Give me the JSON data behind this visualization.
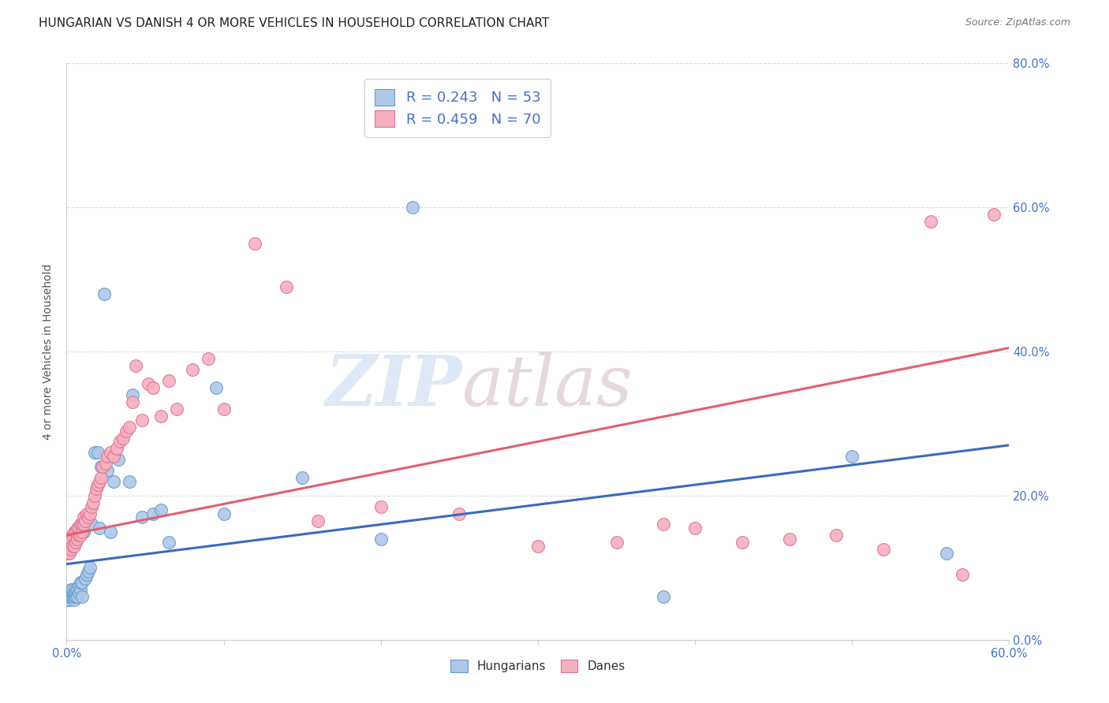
{
  "title": "HUNGARIAN VS DANISH 4 OR MORE VEHICLES IN HOUSEHOLD CORRELATION CHART",
  "source": "Source: ZipAtlas.com",
  "xlim": [
    0.0,
    0.6
  ],
  "ylim": [
    0.0,
    0.8
  ],
  "ylabel": "4 or more Vehicles in Household",
  "legend_r_entries": [
    {
      "label": "R = 0.243   N = 53",
      "color": "#adc8e8",
      "edge_color": "#6699cc"
    },
    {
      "label": "R = 0.459   N = 70",
      "color": "#f5b0c0",
      "edge_color": "#e07090"
    }
  ],
  "hungarian_scatter": {
    "color": "#adc8e8",
    "edge_color": "#6699cc",
    "x": [
      0.001,
      0.001,
      0.002,
      0.002,
      0.003,
      0.003,
      0.003,
      0.004,
      0.004,
      0.004,
      0.005,
      0.005,
      0.005,
      0.006,
      0.006,
      0.006,
      0.007,
      0.007,
      0.008,
      0.008,
      0.009,
      0.009,
      0.01,
      0.01,
      0.011,
      0.012,
      0.013,
      0.014,
      0.015,
      0.016,
      0.018,
      0.02,
      0.021,
      0.022,
      0.024,
      0.026,
      0.028,
      0.03,
      0.033,
      0.04,
      0.042,
      0.048,
      0.055,
      0.06,
      0.065,
      0.095,
      0.1,
      0.15,
      0.2,
      0.22,
      0.38,
      0.5,
      0.56
    ],
    "y": [
      0.055,
      0.06,
      0.055,
      0.06,
      0.06,
      0.065,
      0.07,
      0.06,
      0.065,
      0.07,
      0.055,
      0.06,
      0.065,
      0.06,
      0.065,
      0.07,
      0.06,
      0.07,
      0.065,
      0.075,
      0.07,
      0.08,
      0.06,
      0.08,
      0.15,
      0.085,
      0.09,
      0.095,
      0.1,
      0.16,
      0.26,
      0.26,
      0.155,
      0.24,
      0.48,
      0.235,
      0.15,
      0.22,
      0.25,
      0.22,
      0.34,
      0.17,
      0.175,
      0.18,
      0.135,
      0.35,
      0.175,
      0.225,
      0.14,
      0.6,
      0.06,
      0.255,
      0.12
    ]
  },
  "danish_scatter": {
    "color": "#f5b0c0",
    "edge_color": "#e07090",
    "x": [
      0.001,
      0.001,
      0.002,
      0.002,
      0.003,
      0.003,
      0.004,
      0.004,
      0.005,
      0.005,
      0.006,
      0.006,
      0.007,
      0.007,
      0.008,
      0.008,
      0.009,
      0.009,
      0.01,
      0.01,
      0.011,
      0.011,
      0.012,
      0.013,
      0.014,
      0.015,
      0.016,
      0.017,
      0.018,
      0.019,
      0.02,
      0.021,
      0.022,
      0.023,
      0.025,
      0.026,
      0.028,
      0.03,
      0.032,
      0.034,
      0.036,
      0.038,
      0.04,
      0.042,
      0.044,
      0.048,
      0.052,
      0.055,
      0.06,
      0.065,
      0.07,
      0.08,
      0.09,
      0.1,
      0.12,
      0.14,
      0.16,
      0.2,
      0.25,
      0.3,
      0.35,
      0.38,
      0.4,
      0.43,
      0.46,
      0.49,
      0.52,
      0.55,
      0.57,
      0.59
    ],
    "y": [
      0.12,
      0.13,
      0.12,
      0.135,
      0.125,
      0.14,
      0.13,
      0.145,
      0.13,
      0.15,
      0.135,
      0.15,
      0.14,
      0.155,
      0.145,
      0.155,
      0.145,
      0.16,
      0.15,
      0.16,
      0.16,
      0.17,
      0.165,
      0.175,
      0.17,
      0.175,
      0.185,
      0.19,
      0.2,
      0.21,
      0.215,
      0.22,
      0.225,
      0.24,
      0.245,
      0.255,
      0.26,
      0.255,
      0.265,
      0.275,
      0.28,
      0.29,
      0.295,
      0.33,
      0.38,
      0.305,
      0.355,
      0.35,
      0.31,
      0.36,
      0.32,
      0.375,
      0.39,
      0.32,
      0.55,
      0.49,
      0.165,
      0.185,
      0.175,
      0.13,
      0.135,
      0.16,
      0.155,
      0.135,
      0.14,
      0.145,
      0.125,
      0.58,
      0.09,
      0.59
    ]
  },
  "hungarian_line": {
    "color": "#3a6abf",
    "x_start": 0.0,
    "y_start": 0.105,
    "x_end": 0.6,
    "y_end": 0.27
  },
  "danish_line": {
    "color": "#e06070",
    "x_start": 0.0,
    "y_start": 0.145,
    "x_end": 0.6,
    "y_end": 0.405
  },
  "watermark_zip": "ZIP",
  "watermark_atlas": "atlas",
  "background_color": "#ffffff",
  "grid_color": "#dddddd",
  "tick_color": "#4472c4",
  "title_fontsize": 11,
  "axis_label_fontsize": 10,
  "tick_fontsize": 10.5,
  "legend_fontsize": 13
}
